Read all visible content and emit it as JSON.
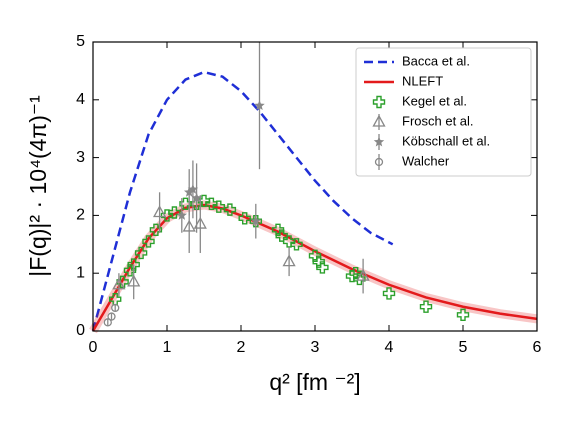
{
  "chart_data": {
    "type": "line",
    "x_label": "q² [fm ⁻²]",
    "y_label": "|F(q)|² · 10⁴(4π)⁻¹",
    "xlim": [
      0,
      6
    ],
    "ylim": [
      0,
      5
    ],
    "xticks": [
      0,
      1,
      2,
      3,
      4,
      5,
      6
    ],
    "yticks": [
      0,
      1,
      2,
      3,
      4,
      5
    ],
    "legend": "upper right",
    "series": [
      {
        "name": "Bacca et al.",
        "color": "#1f2fd6",
        "mode": "line",
        "dash": true,
        "x": [
          0,
          0.25,
          0.5,
          0.75,
          1.0,
          1.25,
          1.5,
          1.75,
          2.0,
          2.25,
          2.5,
          2.75,
          3.0,
          3.25,
          3.5,
          3.75,
          4.05
        ],
        "values": [
          0,
          1.2,
          2.4,
          3.4,
          4.0,
          4.35,
          4.48,
          4.4,
          4.15,
          3.8,
          3.4,
          3.0,
          2.6,
          2.25,
          1.95,
          1.7,
          1.5
        ]
      },
      {
        "name": "NLEFT",
        "color": "#e31a1c",
        "mode": "line",
        "dash": false,
        "x": [
          0,
          0.25,
          0.5,
          0.75,
          1.0,
          1.25,
          1.5,
          1.75,
          2.0,
          2.5,
          3.0,
          3.5,
          4.0,
          4.5,
          5.0,
          5.5,
          6.0
        ],
        "values": [
          0,
          0.55,
          1.1,
          1.6,
          1.95,
          2.13,
          2.18,
          2.12,
          2.0,
          1.72,
          1.38,
          1.07,
          0.8,
          0.58,
          0.42,
          0.3,
          0.21
        ]
      },
      {
        "name": "Kegel et al.",
        "color": "#2ca02c",
        "mode": "markers",
        "marker": "plus",
        "x": [
          0.3,
          0.4,
          0.5,
          0.55,
          0.65,
          0.75,
          0.85,
          1.0,
          1.1,
          1.25,
          1.4,
          1.5,
          1.6,
          1.7,
          1.85,
          2.05,
          2.2,
          2.5,
          2.55,
          2.65,
          2.75,
          3.0,
          3.05,
          3.1,
          3.5,
          3.55,
          3.6,
          4.0,
          4.5,
          5.0
        ],
        "values": [
          0.55,
          0.85,
          1.05,
          1.15,
          1.35,
          1.55,
          1.75,
          2.0,
          2.05,
          2.2,
          2.2,
          2.25,
          2.2,
          2.15,
          2.1,
          1.95,
          1.9,
          1.75,
          1.65,
          1.55,
          1.5,
          1.3,
          1.2,
          1.1,
          0.95,
          1.0,
          0.9,
          0.65,
          0.42,
          0.28
        ]
      },
      {
        "name": "Frosch et al.",
        "color": "#888888",
        "mode": "markers",
        "marker": "triangle",
        "x": [
          0.35,
          0.55,
          0.9,
          1.3,
          1.45,
          2.65,
          3.65
        ],
        "values": [
          0.8,
          0.85,
          2.05,
          1.8,
          1.85,
          1.2,
          0.95
        ],
        "errors": [
          0.2,
          0.3,
          0.35,
          0.45,
          0.5,
          0.25,
          0.3
        ]
      },
      {
        "name": "Köbschall et al.",
        "color": "#888888",
        "mode": "markers",
        "marker": "star",
        "x": [
          1.2,
          1.3,
          1.35,
          1.4,
          2.2,
          2.25
        ],
        "values": [
          2.0,
          2.4,
          2.45,
          2.3,
          1.9,
          3.9
        ],
        "errors": [
          0.3,
          0.4,
          0.5,
          0.6,
          0.3,
          1.1
        ]
      },
      {
        "name": "Walcher",
        "color": "#888888",
        "mode": "markers",
        "marker": "circle",
        "x": [
          0.2,
          0.25,
          0.3
        ],
        "values": [
          0.15,
          0.25,
          0.4
        ],
        "errors": [
          0.05,
          0.05,
          0.06
        ]
      }
    ]
  }
}
